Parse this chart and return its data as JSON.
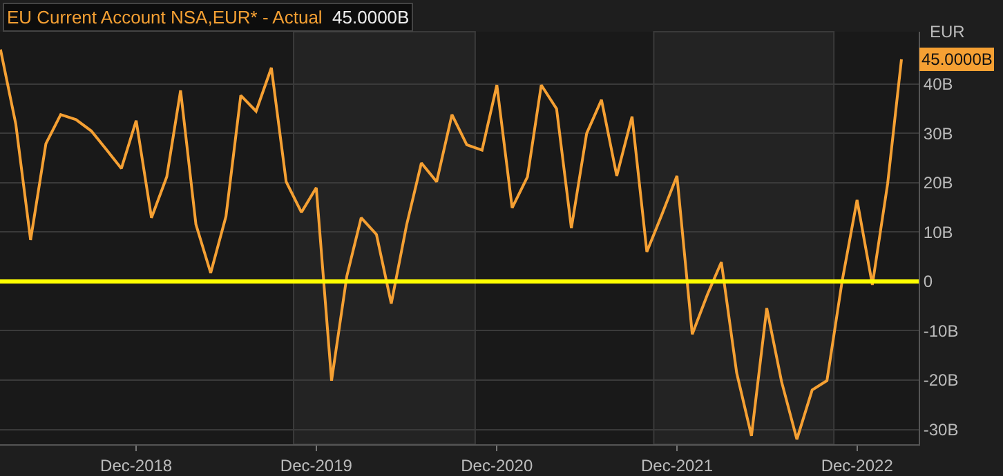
{
  "chart_data": {
    "type": "line",
    "title": "EU Current Account NSA,EUR* - Actual",
    "subtitle": "45.0000B",
    "ylabel": "EUR",
    "x": [
      "2018-03",
      "2018-04",
      "2018-05",
      "2018-06",
      "2018-07",
      "2018-08",
      "2018-09",
      "2018-10",
      "2018-11",
      "2018-12",
      "2019-01",
      "2019-02",
      "2019-03",
      "2019-04",
      "2019-05",
      "2019-06",
      "2019-07",
      "2019-08",
      "2019-09",
      "2019-10",
      "2019-11",
      "2019-12",
      "2020-01",
      "2020-02",
      "2020-03",
      "2020-04",
      "2020-05",
      "2020-06",
      "2020-07",
      "2020-08",
      "2020-09",
      "2020-10",
      "2020-11",
      "2020-12",
      "2021-01",
      "2021-02",
      "2021-03",
      "2021-04",
      "2021-05",
      "2021-06",
      "2021-07",
      "2021-08",
      "2021-09",
      "2021-10",
      "2021-11",
      "2021-12",
      "2022-01",
      "2022-02",
      "2022-03",
      "2022-04",
      "2022-05",
      "2022-06",
      "2022-07",
      "2022-08",
      "2022-09",
      "2022-10",
      "2022-11",
      "2022-12",
      "2023-01",
      "2023-02",
      "2023-03"
    ],
    "series": [
      {
        "color": "#f5a033",
        "values": [
          47.0,
          31.9,
          8.4,
          27.9,
          33.8,
          32.8,
          30.5,
          26.8,
          22.9,
          32.6,
          12.9,
          21.2,
          38.7,
          11.6,
          1.7,
          13.2,
          37.7,
          34.5,
          43.3,
          20.2,
          14.0,
          19.0,
          -20.1,
          1.1,
          12.9,
          9.5,
          -4.5,
          11.4,
          24.0,
          20.2,
          33.8,
          27.7,
          26.6,
          39.8,
          14.9,
          21.2,
          39.8,
          35.0,
          10.8,
          30.0,
          36.8,
          21.4,
          33.4,
          6.0,
          13.7,
          21.4,
          -10.7,
          -2.6,
          3.9,
          -18.5,
          -31.3,
          -5.4,
          -20.3,
          -32.0,
          -22.0,
          -20.1,
          0.2,
          16.5,
          -0.7,
          19.8,
          45.0
        ]
      }
    ],
    "annotations": [
      "45.0000B"
    ],
    "ref_lines": [
      {
        "axis": "y",
        "value": 0,
        "color": "#ffff00"
      }
    ],
    "bands": [
      {
        "axis": "x",
        "from": "2019-10-16",
        "to": "2020-10-18",
        "color": "#232323"
      },
      {
        "axis": "x",
        "from": "2021-10-15",
        "to": "2022-10-15",
        "color": "#232323"
      }
    ],
    "xlim": [
      "2018-02-28",
      "2023-04-05"
    ],
    "xticks": [
      {
        "value": "2018-12-01",
        "label": "Dec-2018"
      },
      {
        "value": "2019-12-01",
        "label": "Dec-2019"
      },
      {
        "value": "2020-12-01",
        "label": "Dec-2020"
      },
      {
        "value": "2021-12-01",
        "label": "Dec-2021"
      },
      {
        "value": "2022-12-01",
        "label": "Dec-2022"
      }
    ],
    "ylim": [
      -33,
      50.6
    ],
    "yticks": [
      {
        "value": -30,
        "label": "-30B"
      },
      {
        "value": -20,
        "label": "-20B"
      },
      {
        "value": -10,
        "label": "-10B"
      },
      {
        "value": 0,
        "label": "0"
      },
      {
        "value": 10,
        "label": "10B"
      },
      {
        "value": 20,
        "label": "20B"
      },
      {
        "value": 30,
        "label": "30B"
      },
      {
        "value": 40,
        "label": "40B"
      }
    ],
    "grid": "y",
    "marker": "none",
    "line_style": "solid"
  }
}
